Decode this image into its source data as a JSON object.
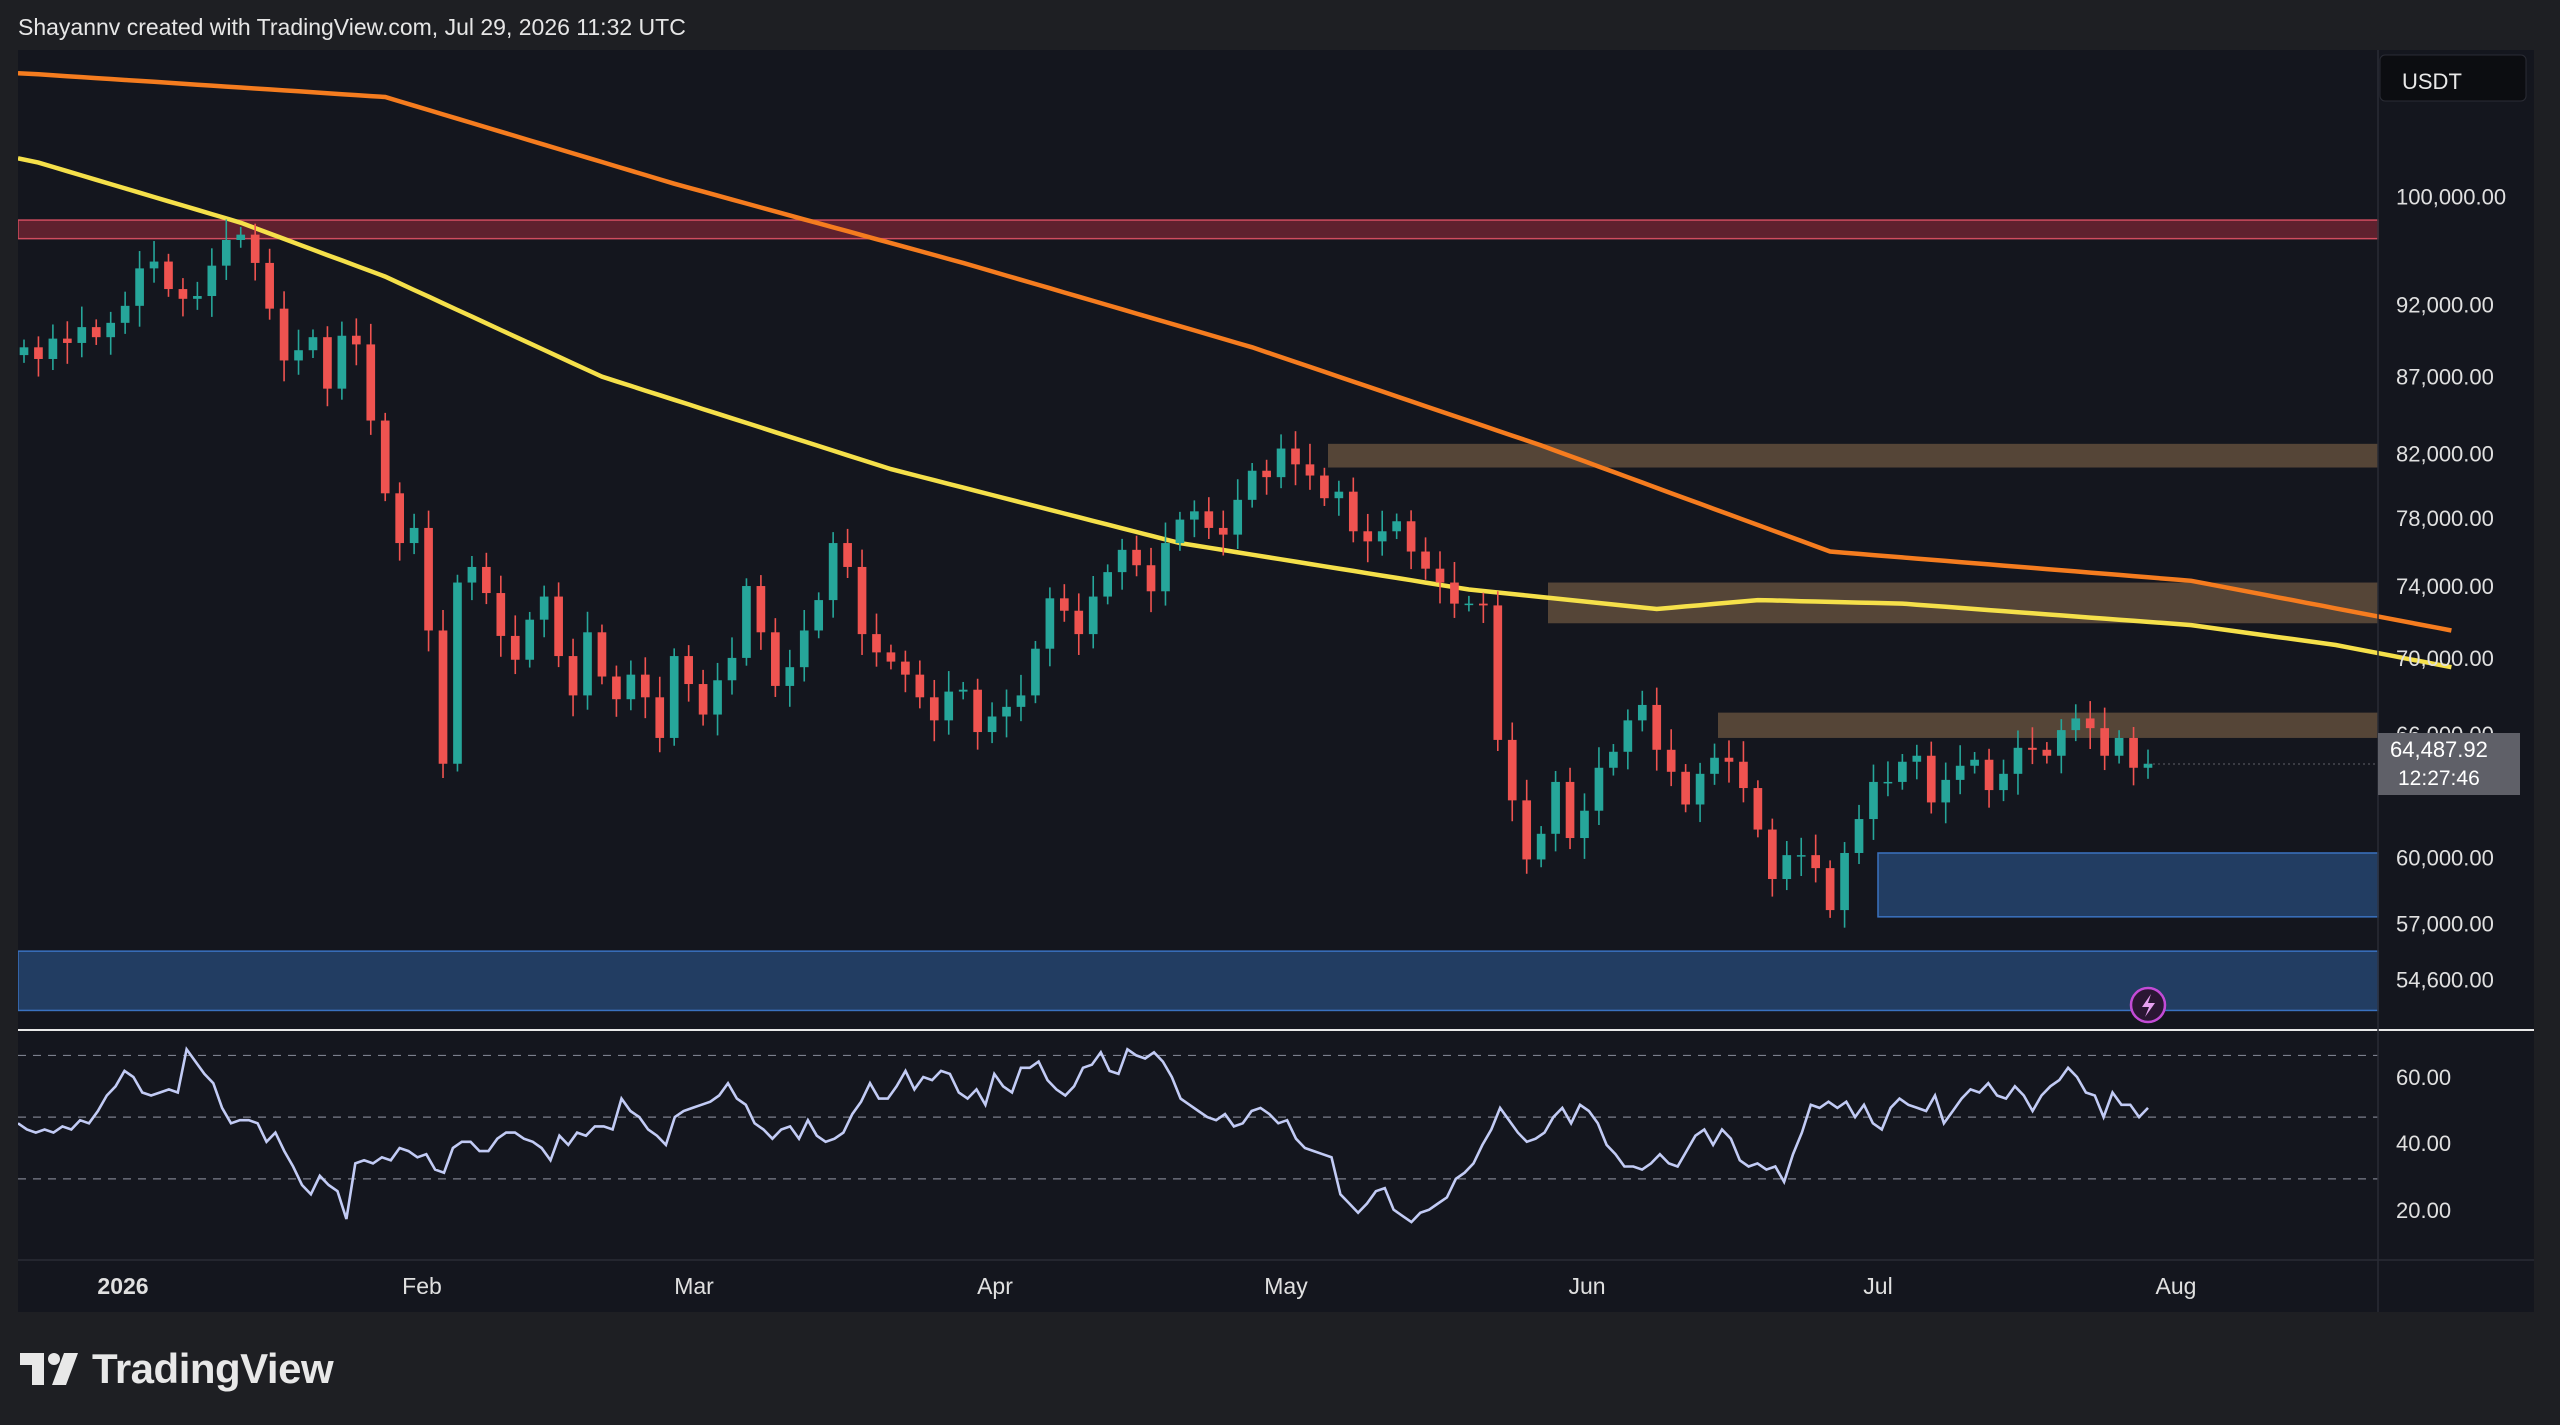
{
  "header": {
    "attribution": "Shayannv created with TradingView.com, Jul 29, 2026 11:32 UTC"
  },
  "brand": {
    "name": "TradingView"
  },
  "colors": {
    "up": "#26a69a",
    "down": "#ef5350",
    "ma_fast": "#f5e04a",
    "ma_slow": "#f57c1f",
    "rsi": "#c2cbf5",
    "supply": "#6b5640",
    "demand": "#2e5f9a",
    "resistance": "#9c2c3c"
  },
  "chart_data": [
    {
      "type": "candlestick",
      "currency": "USDT",
      "y_scale": "log",
      "ylim": [
        52500,
        112000
      ],
      "x_ticks": [
        "2026",
        "Feb",
        "Mar",
        "Apr",
        "May",
        "Jun",
        "Jul",
        "Aug"
      ],
      "y_ticks": [
        "100,000.00",
        "92,000.00",
        "87,000.00",
        "82,000.00",
        "78,000.00",
        "74,000.00",
        "70,000.00",
        "66,000.00",
        "60,000.00",
        "57,000.00",
        "54,600.00"
      ],
      "last_price": "64,487.92",
      "countdown": "12:27:46",
      "closes": [
        89000,
        88200,
        89600,
        89300,
        90400,
        89700,
        90700,
        91900,
        94600,
        95100,
        93100,
        92400,
        92600,
        94800,
        96700,
        97100,
        95000,
        91700,
        88100,
        88800,
        89700,
        86200,
        89800,
        89200,
        84100,
        79500,
        76500,
        77400,
        71500,
        64500,
        74200,
        75100,
        73600,
        71200,
        69900,
        72100,
        73400,
        70100,
        68000,
        71400,
        69000,
        67800,
        69100,
        67900,
        65800,
        70100,
        68600,
        67000,
        68800,
        70000,
        74000,
        71400,
        68500,
        69500,
        71500,
        73200,
        76500,
        75100,
        71300,
        70300,
        69800,
        69100,
        67900,
        66700,
        68200,
        68300,
        66100,
        66900,
        67400,
        68000,
        70500,
        73300,
        72600,
        71300,
        73400,
        74800,
        76100,
        75200,
        73700,
        76500,
        77900,
        78400,
        77400,
        77000,
        79100,
        80900,
        80500,
        82300,
        81300,
        80600,
        79200,
        79600,
        77200,
        76600,
        77200,
        77800,
        76000,
        75000,
        74200,
        73000,
        73000,
        72900,
        65700,
        62700,
        59900,
        61100,
        63600,
        60900,
        62200,
        64300,
        65100,
        66700,
        67500,
        65200,
        64100,
        62500,
        64000,
        64800,
        64600,
        63300,
        61300,
        59000,
        60100,
        60100,
        59500,
        57600,
        60200,
        61800,
        63600,
        63600,
        64600,
        64900,
        62600,
        63700,
        64400,
        64700,
        63200,
        64000,
        65300,
        65200,
        64900,
        66200,
        66800,
        66300,
        64900,
        65800,
        64300,
        64500
      ],
      "resistance_zone": {
        "top": 98200,
        "bottom": 96800
      },
      "supply_zones": [
        {
          "top": 82600,
          "bottom": 81100
        },
        {
          "top": 74200,
          "bottom": 71900
        },
        {
          "top": 67100,
          "bottom": 65800
        }
      ],
      "demand_zones": [
        {
          "top": 60200,
          "bottom": 57300
        },
        {
          "top": 55800,
          "bottom": 53300
        }
      ],
      "ma_fast": {
        "start": 103000,
        "points": [
          [
            0,
            103000
          ],
          [
            15,
            98000
          ],
          [
            25,
            94000
          ],
          [
            40,
            87000
          ],
          [
            60,
            81000
          ],
          [
            80,
            76500
          ],
          [
            100,
            73800
          ],
          [
            113,
            72700
          ],
          [
            120,
            73200
          ],
          [
            130,
            73000
          ],
          [
            150,
            71800
          ],
          [
            160,
            70700
          ],
          [
            168,
            69500
          ]
        ]
      },
      "ma_slow": {
        "start": 110000,
        "points": [
          [
            0,
            110000
          ],
          [
            25,
            108000
          ],
          [
            45,
            101000
          ],
          [
            65,
            95000
          ],
          [
            85,
            89000
          ],
          [
            105,
            82500
          ],
          [
            125,
            76000
          ],
          [
            150,
            74300
          ],
          [
            168,
            71500
          ]
        ]
      }
    },
    {
      "type": "line",
      "indicator": "RSI",
      "ylim": [
        5,
        75
      ],
      "y_ticks": [
        "60.00",
        "40.00",
        "20.00"
      ],
      "values": [
        48,
        46,
        45,
        46,
        45,
        47,
        46,
        49,
        48,
        52,
        57,
        60,
        65,
        63,
        58,
        57,
        58,
        59,
        58,
        72,
        68,
        64,
        61,
        53,
        48,
        49,
        49,
        48,
        42,
        45,
        39,
        34,
        28,
        25,
        31,
        28,
        26,
        17,
        35,
        36,
        35,
        37,
        36,
        40,
        39,
        37,
        38,
        33,
        32,
        40,
        42,
        42,
        39,
        39,
        43,
        45,
        45,
        43,
        42,
        40,
        36,
        44,
        41,
        45,
        44,
        47,
        47,
        46,
        56,
        52,
        50,
        46,
        44,
        41,
        50,
        52,
        53,
        54,
        55,
        57,
        61,
        56,
        54,
        48,
        46,
        43,
        46,
        47,
        43,
        49,
        44,
        42,
        43,
        45,
        51,
        55,
        61,
        56,
        56,
        60,
        65,
        59,
        63,
        62,
        65,
        64,
        58,
        56,
        59,
        54,
        64,
        60,
        58,
        66,
        66,
        68,
        62,
        59,
        57,
        60,
        66,
        67,
        71,
        65,
        64,
        72,
        70,
        69,
        71,
        68,
        63,
        56,
        54,
        52,
        50,
        49,
        51,
        47,
        48,
        52,
        53,
        51,
        48,
        49,
        43,
        40,
        39,
        38,
        37,
        25,
        22,
        19,
        22,
        26,
        27,
        20,
        18,
        16,
        19,
        20,
        22,
        24,
        30,
        32,
        35,
        41,
        46,
        53,
        49,
        45,
        42,
        43,
        45,
        50,
        53,
        48,
        54,
        52,
        48,
        41,
        38,
        34,
        34,
        33,
        35,
        38,
        35,
        34,
        39,
        44,
        46,
        41,
        46,
        43,
        36,
        34,
        35,
        33,
        34,
        29,
        38,
        45,
        54,
        53,
        55,
        53,
        55,
        50,
        54,
        48,
        46,
        53,
        56,
        54,
        53,
        52,
        57,
        48,
        52,
        56,
        59,
        58,
        61,
        57,
        56,
        60,
        57,
        52,
        57,
        60,
        62,
        66,
        63,
        58,
        57,
        50,
        58,
        54,
        54,
        50,
        53
      ]
    }
  ]
}
